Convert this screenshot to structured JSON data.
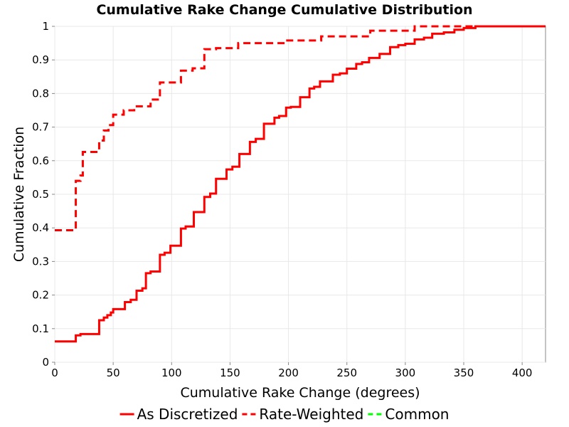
{
  "chart_data": {
    "type": "line",
    "title": "Cumulative Rake Change Cumulative Distribution",
    "xlabel": "Cumulative Rake Change (degrees)",
    "ylabel": "Cumulative Fraction",
    "xlim": [
      0,
      420
    ],
    "ylim": [
      0,
      1
    ],
    "x_ticks": [
      "0",
      "50",
      "100",
      "150",
      "200",
      "250",
      "300",
      "350",
      "400"
    ],
    "y_ticks": [
      "0",
      "0.1",
      "0.2",
      "0.3",
      "0.4",
      "0.5",
      "0.6",
      "0.7",
      "0.8",
      "0.9",
      "1"
    ],
    "grid": true,
    "legend_position": "bottom",
    "series": [
      {
        "name": "As Discretized",
        "color": "#ff0000",
        "dash": "solid",
        "step": true,
        "points": [
          [
            0,
            0.062
          ],
          [
            18,
            0.062
          ],
          [
            18,
            0.08
          ],
          [
            22,
            0.08
          ],
          [
            22,
            0.084
          ],
          [
            38,
            0.084
          ],
          [
            38,
            0.125
          ],
          [
            42,
            0.125
          ],
          [
            42,
            0.133
          ],
          [
            45,
            0.133
          ],
          [
            45,
            0.14
          ],
          [
            48,
            0.14
          ],
          [
            48,
            0.148
          ],
          [
            50,
            0.148
          ],
          [
            50,
            0.158
          ],
          [
            60,
            0.158
          ],
          [
            60,
            0.179
          ],
          [
            65,
            0.179
          ],
          [
            65,
            0.186
          ],
          [
            70,
            0.186
          ],
          [
            70,
            0.213
          ],
          [
            75,
            0.213
          ],
          [
            75,
            0.22
          ],
          [
            78,
            0.22
          ],
          [
            78,
            0.265
          ],
          [
            82,
            0.265
          ],
          [
            82,
            0.27
          ],
          [
            90,
            0.27
          ],
          [
            90,
            0.32
          ],
          [
            94,
            0.32
          ],
          [
            94,
            0.326
          ],
          [
            99,
            0.326
          ],
          [
            99,
            0.347
          ],
          [
            108,
            0.347
          ],
          [
            108,
            0.398
          ],
          [
            112,
            0.398
          ],
          [
            112,
            0.404
          ],
          [
            119,
            0.404
          ],
          [
            119,
            0.447
          ],
          [
            128,
            0.447
          ],
          [
            128,
            0.492
          ],
          [
            133,
            0.492
          ],
          [
            133,
            0.502
          ],
          [
            138,
            0.502
          ],
          [
            138,
            0.546
          ],
          [
            147,
            0.546
          ],
          [
            147,
            0.574
          ],
          [
            152,
            0.574
          ],
          [
            152,
            0.582
          ],
          [
            158,
            0.582
          ],
          [
            158,
            0.62
          ],
          [
            167,
            0.62
          ],
          [
            167,
            0.656
          ],
          [
            172,
            0.656
          ],
          [
            172,
            0.665
          ],
          [
            179,
            0.665
          ],
          [
            179,
            0.71
          ],
          [
            188,
            0.71
          ],
          [
            188,
            0.728
          ],
          [
            192,
            0.728
          ],
          [
            192,
            0.733
          ],
          [
            198,
            0.733
          ],
          [
            198,
            0.758
          ],
          [
            202,
            0.758
          ],
          [
            202,
            0.76
          ],
          [
            210,
            0.76
          ],
          [
            210,
            0.789
          ],
          [
            218,
            0.789
          ],
          [
            218,
            0.815
          ],
          [
            222,
            0.815
          ],
          [
            222,
            0.82
          ],
          [
            227,
            0.82
          ],
          [
            227,
            0.836
          ],
          [
            238,
            0.836
          ],
          [
            238,
            0.856
          ],
          [
            244,
            0.856
          ],
          [
            244,
            0.86
          ],
          [
            250,
            0.86
          ],
          [
            250,
            0.874
          ],
          [
            258,
            0.874
          ],
          [
            258,
            0.888
          ],
          [
            263,
            0.888
          ],
          [
            263,
            0.893
          ],
          [
            269,
            0.893
          ],
          [
            269,
            0.906
          ],
          [
            278,
            0.906
          ],
          [
            278,
            0.918
          ],
          [
            287,
            0.918
          ],
          [
            287,
            0.938
          ],
          [
            294,
            0.938
          ],
          [
            294,
            0.944
          ],
          [
            300,
            0.944
          ],
          [
            300,
            0.948
          ],
          [
            308,
            0.948
          ],
          [
            308,
            0.961
          ],
          [
            316,
            0.961
          ],
          [
            316,
            0.966
          ],
          [
            323,
            0.966
          ],
          [
            323,
            0.978
          ],
          [
            333,
            0.978
          ],
          [
            333,
            0.982
          ],
          [
            342,
            0.982
          ],
          [
            342,
            0.99
          ],
          [
            350,
            0.99
          ],
          [
            350,
            0.995
          ],
          [
            360,
            0.995
          ],
          [
            360,
            1.0
          ],
          [
            420,
            1.0
          ]
        ]
      },
      {
        "name": "Rate-Weighted",
        "color": "#ff0000",
        "dash": "dashed",
        "step": true,
        "points": [
          [
            0,
            0.393
          ],
          [
            18,
            0.393
          ],
          [
            18,
            0.54
          ],
          [
            22,
            0.54
          ],
          [
            22,
            0.556
          ],
          [
            24,
            0.556
          ],
          [
            24,
            0.626
          ],
          [
            38,
            0.626
          ],
          [
            38,
            0.66
          ],
          [
            42,
            0.66
          ],
          [
            42,
            0.69
          ],
          [
            46,
            0.69
          ],
          [
            46,
            0.706
          ],
          [
            50,
            0.706
          ],
          [
            50,
            0.737
          ],
          [
            59,
            0.737
          ],
          [
            59,
            0.75
          ],
          [
            68,
            0.75
          ],
          [
            68,
            0.762
          ],
          [
            82,
            0.762
          ],
          [
            82,
            0.782
          ],
          [
            90,
            0.782
          ],
          [
            90,
            0.833
          ],
          [
            108,
            0.833
          ],
          [
            108,
            0.868
          ],
          [
            118,
            0.868
          ],
          [
            118,
            0.875
          ],
          [
            128,
            0.875
          ],
          [
            128,
            0.932
          ],
          [
            138,
            0.932
          ],
          [
            138,
            0.935
          ],
          [
            157,
            0.935
          ],
          [
            157,
            0.95
          ],
          [
            198,
            0.95
          ],
          [
            198,
            0.958
          ],
          [
            228,
            0.958
          ],
          [
            228,
            0.97
          ],
          [
            270,
            0.97
          ],
          [
            270,
            0.987
          ],
          [
            308,
            0.987
          ],
          [
            308,
            1.0
          ],
          [
            420,
            1.0
          ]
        ]
      },
      {
        "name": "Common",
        "color": "#00ff00",
        "dash": "dashed",
        "step": true,
        "points": []
      }
    ]
  }
}
